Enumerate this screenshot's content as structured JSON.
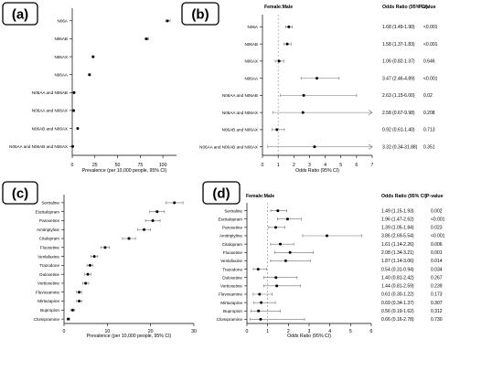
{
  "colors": {
    "axis": "#000000",
    "ci": "#707070",
    "point": "#000000",
    "ref": "#888888",
    "badge_border": "#000000"
  },
  "chart_data": [
    {
      "panel": "(a)",
      "type": "scatter",
      "subtype": "dot-with-ci",
      "xlabel": "Prevalence (per 10,000 people, 95% CI)",
      "xlim": [
        0,
        115
      ],
      "xticks": [
        0,
        25,
        50,
        75,
        100
      ],
      "categories": [
        "N06A",
        "N06AB",
        "N06AX",
        "N06AA",
        "N06AA and N06AB",
        "N06AA and N06AX",
        "N06AB and N06AX",
        "N06AA and N06AB and N06AX"
      ],
      "values": [
        105,
        82,
        23,
        19,
        2,
        1.5,
        6,
        0.5
      ],
      "ci_low": [
        103,
        80,
        22,
        18,
        1.7,
        1.2,
        5.5,
        0.3
      ],
      "ci_high": [
        108,
        84,
        24,
        20,
        2.3,
        1.8,
        6.5,
        0.7
      ]
    },
    {
      "panel": "(b)",
      "type": "scatter",
      "subtype": "forest",
      "header_left": "Female:Male",
      "header_or": "Odds Ratio (95% CI)",
      "header_p": "P-value",
      "xlabel": "Odds Ratio (95% CI)",
      "xlim": [
        0,
        7
      ],
      "xticks": [
        0,
        1,
        2,
        3,
        4,
        5,
        6,
        7
      ],
      "ref_line": 1,
      "categories": [
        "N06A",
        "N06AB",
        "N06AX",
        "N06AA",
        "N06AA and N06AB",
        "N06AA and N06AX",
        "N06AB and N06AX",
        "N06AA and N06AB and N06AX"
      ],
      "values": [
        1.68,
        1.58,
        1.06,
        3.47,
        2.63,
        2.58,
        0.92,
        3.32
      ],
      "ci_low": [
        1.49,
        1.37,
        0.82,
        2.46,
        1.15,
        0.67,
        0.61,
        0.34
      ],
      "ci_high": [
        1.9,
        1.83,
        1.37,
        4.89,
        6.0,
        9.98,
        1.4,
        31.88
      ],
      "or_text": [
        "1.68 (1.49-1.90)",
        "1.58 (1.37-1.83)",
        "1.06 (0.82-1.37)",
        "3.47 (2.46-4.89)",
        "2.63 (1.15-6.00)",
        "2.58 (0.67-9.98)",
        "0.92 (0.61-1.40)",
        "3.32 (0.34-31.88)"
      ],
      "p_text": [
        "<0.001",
        "<0.001",
        "0.646",
        "<0.001",
        "0.02",
        "0.208",
        "0.713",
        "0.351"
      ]
    },
    {
      "panel": "(c)",
      "type": "scatter",
      "subtype": "dot-with-ci",
      "xlabel": "Prevalence (per 10,000 people, 95% CI)",
      "xlim": [
        0,
        30
      ],
      "xticks": [
        0,
        10,
        20,
        30
      ],
      "categories": [
        "Sertraline",
        "Escitalopram",
        "Paroxetine",
        "Amitriptyline",
        "Citalopram",
        "Fluoxetine",
        "Venlafaxine",
        "Trazodone",
        "Duloxetine",
        "Vortioxetine",
        "Fluvoxamine",
        "Mirtazapine",
        "Bupropion",
        "Clomipramine"
      ],
      "values": [
        25.5,
        21.5,
        20.5,
        18.5,
        15,
        9.5,
        7,
        6,
        5.5,
        5,
        3.5,
        3.5,
        2,
        1
      ],
      "ci_low": [
        23.5,
        19.8,
        18.8,
        17,
        13.5,
        8.5,
        6.2,
        5.3,
        4.8,
        4.3,
        2.9,
        2.9,
        1.5,
        0.7
      ],
      "ci_high": [
        27.5,
        23.2,
        22.2,
        20,
        16.5,
        10.5,
        7.8,
        6.7,
        6.2,
        5.7,
        4.1,
        4.1,
        2.5,
        1.3
      ]
    },
    {
      "panel": "(d)",
      "type": "scatter",
      "subtype": "forest",
      "header_left": "Female:Male",
      "header_or": "Odds Ratio (95% CI)",
      "header_p": "P-value",
      "xlabel": "Odds Ratio (95% CI)",
      "xlim": [
        0,
        6
      ],
      "xticks": [
        0,
        1,
        2,
        3,
        4,
        5,
        6
      ],
      "ref_line": 1,
      "categories": [
        "Sertraline",
        "Escitalopram",
        "Paroxetine",
        "Amitriptyline",
        "Citalopram",
        "Fluoxetine",
        "Venlafaxine",
        "Trazodone",
        "Duloxetine",
        "Vortioxetine",
        "Fluvoxamine",
        "Mirtazapine",
        "Bupropion",
        "Clomipramine"
      ],
      "values": [
        1.49,
        1.96,
        1.39,
        3.86,
        1.61,
        2.08,
        1.87,
        0.54,
        1.4,
        1.44,
        0.61,
        0.69,
        0.56,
        0.66
      ],
      "ci_low": [
        1.15,
        1.47,
        1.05,
        2.69,
        1.14,
        1.34,
        1.14,
        0.31,
        0.81,
        0.81,
        0.3,
        0.34,
        0.19,
        0.16
      ],
      "ci_high": [
        1.93,
        2.62,
        1.84,
        5.54,
        2.26,
        3.21,
        3.06,
        0.94,
        2.42,
        2.59,
        1.22,
        1.37,
        1.62,
        2.78
      ],
      "or_text": [
        "1.49 (1.15-1.93)",
        "1.96 (1.47-2.62)",
        "1.39 (1.05-1.84)",
        "3.86 (2.69-5.54)",
        "1.61 (1.14-2.26)",
        "2.08 (1.34-3.21)",
        "1.87 (1.14-3.06)",
        "0.54 (0.31-0.94)",
        "1.40 (0.81-2.42)",
        "1.44 (0.81-2.59)",
        "0.61 (0.30-1.22)",
        "0.69 (0.34-1.37)",
        "0.56 (0.19-1.62)",
        "0.66 (0.16-2.78)"
      ],
      "p_text": [
        "0.002",
        "<0.001",
        "0.023",
        "<0.001",
        "0.006",
        "0.001",
        "0.014",
        "0.034",
        "0.267",
        "0.239",
        "0.173",
        "0.307",
        "0.312",
        "0.730"
      ]
    }
  ]
}
